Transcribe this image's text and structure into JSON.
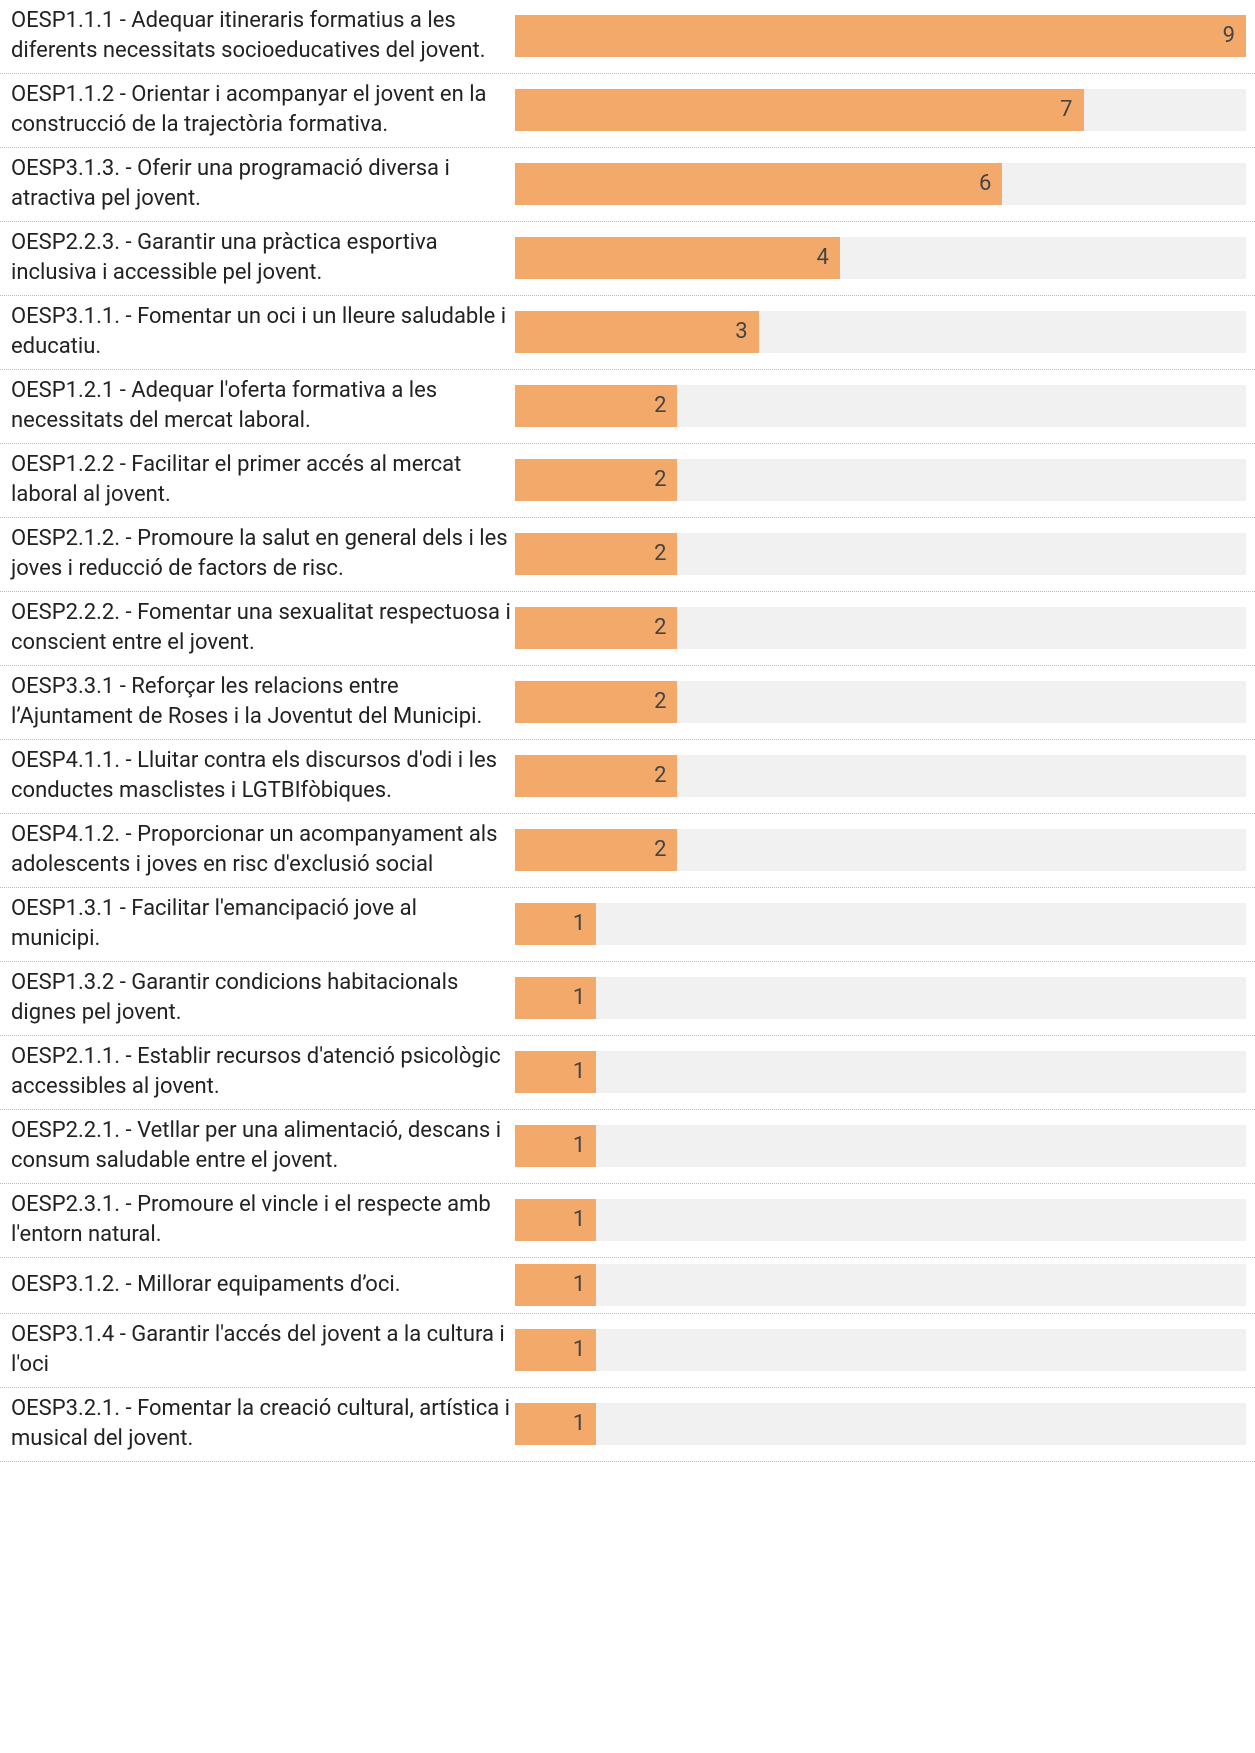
{
  "chart_data": {
    "type": "bar",
    "orientation": "horizontal",
    "categories": [
      "OESP1.1.1 - Adequar itineraris formatius a les diferents necessitats socioeducatives del jovent.",
      "OESP1.1.2 - Orientar i acompanyar el jovent en la construcció de la trajectòria formativa.",
      "OESP3.1.3. - Oferir una programació diversa i atractiva pel jovent.",
      "OESP2.2.3. - Garantir una pràctica esportiva inclusiva i accessible pel jovent.",
      "OESP3.1.1. - Fomentar un oci i un lleure saludable i educatiu.",
      "OESP1.2.1 - Adequar l'oferta formativa a les necessitats del mercat laboral.",
      "OESP1.2.2 - Facilitar el primer accés al mercat laboral al jovent.",
      "OESP2.1.2. - Promoure la salut en general dels i les joves i reducció de factors de risc.",
      "OESP2.2.2. - Fomentar una sexualitat respectuosa i conscient entre el jovent.",
      "OESP3.3.1 - Reforçar les relacions entre l’Ajuntament de Roses i la Joventut del Municipi.",
      "OESP4.1.1. - Lluitar contra els discursos d'odi i les conductes masclistes i LGTBIfòbiques.",
      "OESP4.1.2. - Proporcionar un acompanyament als adolescents i joves en risc d'exclusió social",
      "OESP1.3.1 - Facilitar l'emancipació jove al municipi.",
      "OESP1.3.2 - Garantir condicions habitacionals dignes pel jovent.",
      "OESP2.1.1. - Establir recursos d'atenció psicològic accessibles al jovent.",
      "OESP2.2.1. - Vetllar per una alimentació, descans i consum saludable entre el jovent.",
      "OESP2.3.1. - Promoure el vincle i el respecte amb l'entorn natural.",
      "OESP3.1.2. - Millorar equipaments d’oci.",
      "OESP3.1.4 - Garantir l'accés del jovent a la cultura i l'oci",
      "OESP3.2.1. - Fomentar la creació cultural, artística i musical del jovent."
    ],
    "values": [
      9,
      7,
      6,
      4,
      3,
      2,
      2,
      2,
      2,
      2,
      2,
      2,
      1,
      1,
      1,
      1,
      1,
      1,
      1,
      1
    ],
    "color": "#f2a96a",
    "track_color": "#f1f1f1",
    "xlim": [
      0,
      9
    ]
  }
}
